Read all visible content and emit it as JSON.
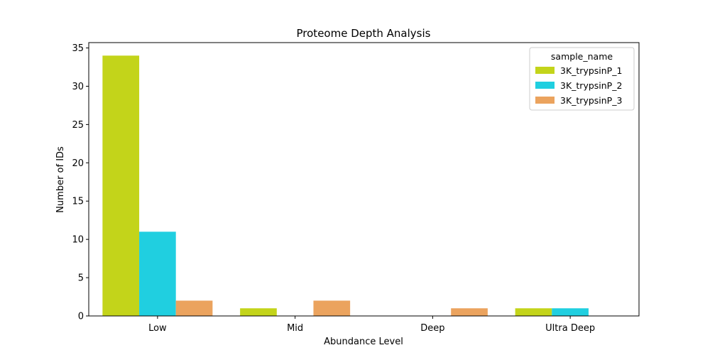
{
  "chart_data": {
    "type": "bar",
    "title": "Proteome Depth Analysis",
    "xlabel": "Abundance Level",
    "ylabel": "Number of IDs",
    "categories": [
      "Low",
      "Mid",
      "Deep",
      "Ultra Deep"
    ],
    "ylim": [
      0,
      35.7
    ],
    "yticks": [
      0,
      5,
      10,
      15,
      20,
      25,
      30,
      35
    ],
    "grid": false,
    "legend": {
      "title": "sample_name",
      "placement": "top-right"
    },
    "series": [
      {
        "name": "3K_trypsinP_1",
        "color": "#c3d41a",
        "values": [
          34,
          1,
          0,
          1
        ]
      },
      {
        "name": "3K_trypsinP_2",
        "color": "#20cfe0",
        "values": [
          11,
          0,
          0,
          1
        ]
      },
      {
        "name": "3K_trypsinP_3",
        "color": "#eba35e",
        "values": [
          2,
          2,
          1,
          0
        ]
      }
    ]
  }
}
